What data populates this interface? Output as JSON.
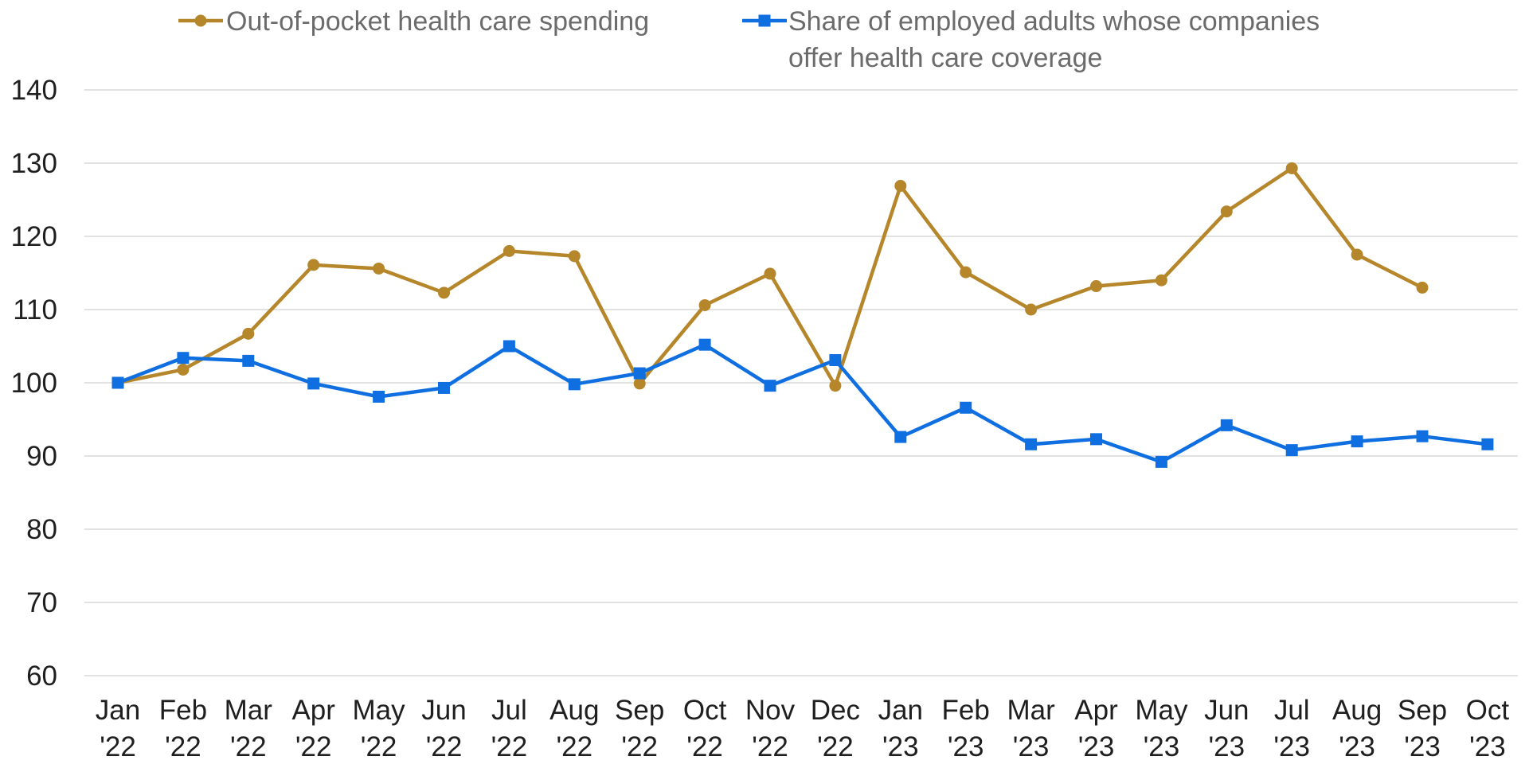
{
  "chart_data": {
    "type": "line",
    "title": "",
    "xlabel": "",
    "ylabel": "",
    "ylim": [
      60,
      140
    ],
    "yticks": [
      60,
      70,
      80,
      90,
      100,
      110,
      120,
      130,
      140
    ],
    "grid": true,
    "legend_position": "top",
    "categories": [
      [
        "Jan",
        "'22"
      ],
      [
        "Feb",
        "'22"
      ],
      [
        "Mar",
        "'22"
      ],
      [
        "Apr",
        "'22"
      ],
      [
        "May",
        "'22"
      ],
      [
        "Jun",
        "'22"
      ],
      [
        "Jul",
        "'22"
      ],
      [
        "Aug",
        "'22"
      ],
      [
        "Sep",
        "'22"
      ],
      [
        "Oct",
        "'22"
      ],
      [
        "Nov",
        "'22"
      ],
      [
        "Dec",
        "'22"
      ],
      [
        "Jan",
        "'23"
      ],
      [
        "Feb",
        "'23"
      ],
      [
        "Mar",
        "'23"
      ],
      [
        "Apr",
        "'23"
      ],
      [
        "May",
        "'23"
      ],
      [
        "Jun",
        "'23"
      ],
      [
        "Jul",
        "'23"
      ],
      [
        "Aug",
        "'23"
      ],
      [
        "Sep",
        "'23"
      ],
      [
        "Oct",
        "'23"
      ]
    ],
    "series": [
      {
        "name": "Out-of-pocket health care spending",
        "legend_lines": [
          "Out-of-pocket health care spending"
        ],
        "color": "#b5862a",
        "marker": "circle",
        "values": [
          100,
          101.8,
          106.7,
          116.1,
          115.6,
          112.3,
          118.0,
          117.3,
          99.9,
          110.6,
          114.9,
          99.6,
          126.9,
          115.1,
          110.0,
          113.2,
          114.0,
          123.4,
          129.3,
          117.5,
          113.0,
          null
        ]
      },
      {
        "name": "Share of employed adults whose companies offer health care coverage",
        "legend_lines": [
          "Share of employed adults whose companies",
          "offer health care coverage"
        ],
        "color": "#0f6fe0",
        "marker": "square",
        "values": [
          100,
          103.4,
          103.0,
          99.9,
          98.1,
          99.3,
          105.0,
          99.8,
          101.3,
          105.2,
          99.6,
          103.1,
          92.6,
          96.6,
          91.6,
          92.3,
          89.2,
          94.2,
          90.8,
          92.0,
          92.7,
          91.6
        ]
      }
    ]
  }
}
